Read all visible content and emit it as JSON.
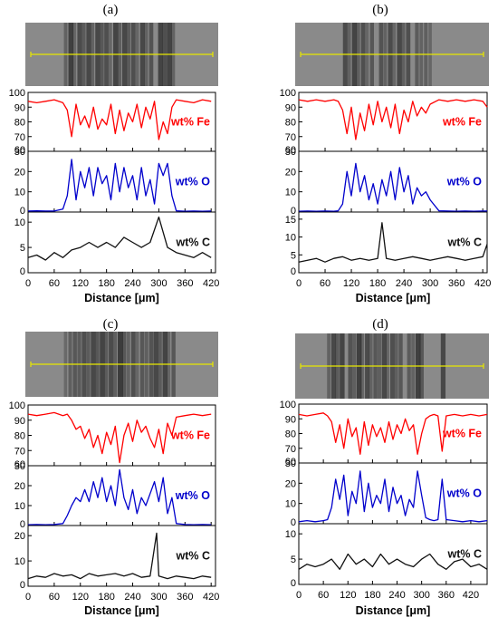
{
  "colors": {
    "fe": "#ff0000",
    "o": "#0000cc",
    "c": "#111111",
    "scan_line": "#e8e800",
    "micrograph": "#8a8a8a"
  },
  "chart_data": [
    {
      "type": "line",
      "panel_label": "(a)",
      "xlabel": "Distance  [μm]",
      "xlim": [
        0,
        430
      ],
      "xticks": [
        "0",
        "60",
        "120",
        "180",
        "240",
        "300",
        "360",
        "420"
      ],
      "series": [
        {
          "name": "wt% Fe",
          "ylim": [
            60,
            100
          ],
          "yticks": [
            "60",
            "70",
            "80",
            "90",
            "100"
          ],
          "x": [
            0,
            20,
            40,
            60,
            80,
            90,
            100,
            110,
            120,
            130,
            140,
            150,
            160,
            170,
            180,
            190,
            200,
            210,
            220,
            230,
            240,
            250,
            260,
            270,
            280,
            290,
            300,
            310,
            320,
            330,
            340,
            360,
            380,
            400,
            420
          ],
          "y": [
            94,
            93,
            94,
            95,
            93,
            88,
            70,
            92,
            78,
            84,
            76,
            90,
            75,
            82,
            78,
            92,
            72,
            88,
            74,
            86,
            80,
            92,
            76,
            90,
            82,
            94,
            68,
            80,
            72,
            90,
            95,
            94,
            93,
            95,
            94
          ]
        },
        {
          "name": "wt% O",
          "ylim": [
            0,
            30
          ],
          "yticks": [
            "0",
            "10",
            "20",
            "30"
          ],
          "x": [
            0,
            20,
            40,
            60,
            80,
            90,
            100,
            110,
            120,
            130,
            140,
            150,
            160,
            170,
            180,
            190,
            200,
            210,
            220,
            230,
            240,
            250,
            260,
            270,
            280,
            290,
            300,
            310,
            320,
            330,
            340,
            360,
            380,
            400,
            420
          ],
          "y": [
            0.5,
            0.6,
            0.5,
            0.5,
            1.5,
            8,
            26,
            6,
            20,
            12,
            22,
            8,
            22,
            14,
            18,
            6,
            24,
            10,
            22,
            12,
            18,
            6,
            22,
            8,
            16,
            4,
            24,
            18,
            24,
            8,
            0.6,
            0.4,
            0.5,
            0.4,
            0.5
          ]
        },
        {
          "name": "wt% C",
          "ylim": [
            0,
            12
          ],
          "yticks": [
            "0",
            "5",
            "10"
          ],
          "x": [
            0,
            20,
            40,
            60,
            80,
            100,
            120,
            140,
            160,
            180,
            200,
            220,
            240,
            260,
            280,
            300,
            320,
            340,
            360,
            380,
            400,
            420
          ],
          "y": [
            3,
            3.5,
            2.5,
            4,
            3,
            4.5,
            5,
            6,
            5,
            6,
            5,
            7,
            6,
            5,
            6,
            11,
            5,
            4,
            3.5,
            3,
            4,
            3
          ]
        }
      ]
    },
    {
      "type": "line",
      "panel_label": "(b)",
      "xlabel": "Distance  [μm]",
      "xlim": [
        0,
        430
      ],
      "xticks": [
        "0",
        "60",
        "120",
        "180",
        "240",
        "300",
        "360",
        "420"
      ],
      "series": [
        {
          "name": "wt% Fe",
          "ylim": [
            60,
            100
          ],
          "yticks": [
            "60",
            "70",
            "80",
            "90",
            "100"
          ],
          "x": [
            0,
            20,
            40,
            60,
            80,
            90,
            100,
            110,
            120,
            130,
            140,
            150,
            160,
            170,
            180,
            190,
            200,
            210,
            220,
            230,
            240,
            250,
            260,
            270,
            280,
            290,
            300,
            320,
            340,
            360,
            380,
            400,
            420,
            430
          ],
          "y": [
            95,
            94,
            95,
            94,
            95,
            94,
            88,
            72,
            90,
            68,
            86,
            74,
            92,
            78,
            94,
            80,
            90,
            76,
            92,
            72,
            88,
            80,
            94,
            84,
            90,
            86,
            92,
            95,
            94,
            95,
            94,
            95,
            94,
            90
          ]
        },
        {
          "name": "wt% O",
          "ylim": [
            0,
            30
          ],
          "yticks": [
            "0",
            "10",
            "20",
            "30"
          ],
          "x": [
            0,
            20,
            40,
            60,
            80,
            90,
            100,
            110,
            120,
            130,
            140,
            150,
            160,
            170,
            180,
            190,
            200,
            210,
            220,
            230,
            240,
            250,
            260,
            270,
            280,
            290,
            300,
            320,
            340,
            360,
            380,
            400,
            420,
            430
          ],
          "y": [
            0.4,
            0.5,
            0.4,
            0.5,
            0.4,
            0.6,
            4,
            20,
            8,
            24,
            10,
            18,
            6,
            14,
            4,
            16,
            8,
            20,
            6,
            22,
            10,
            18,
            4,
            12,
            8,
            10,
            6,
            0.6,
            0.5,
            0.4,
            0.5,
            0.4,
            0.5,
            0.5
          ]
        },
        {
          "name": "wt% C",
          "ylim": [
            0,
            17
          ],
          "yticks": [
            "0",
            "5",
            "10",
            "15"
          ],
          "x": [
            0,
            20,
            40,
            60,
            80,
            100,
            120,
            140,
            160,
            180,
            190,
            200,
            220,
            240,
            260,
            280,
            300,
            320,
            340,
            360,
            380,
            400,
            420,
            430
          ],
          "y": [
            3,
            3.5,
            4,
            3,
            4,
            4.5,
            3.5,
            4,
            3.5,
            4,
            14,
            4,
            3.5,
            4,
            4.5,
            4,
            3.5,
            4,
            4.5,
            4,
            3.5,
            4,
            4.5,
            8
          ]
        }
      ]
    },
    {
      "type": "line",
      "panel_label": "(c)",
      "xlabel": "Distance  [μm]",
      "xlim": [
        0,
        430
      ],
      "xticks": [
        "0",
        "60",
        "120",
        "180",
        "240",
        "300",
        "360",
        "420"
      ],
      "series": [
        {
          "name": "wt% Fe",
          "ylim": [
            60,
            100
          ],
          "yticks": [
            "60",
            "70",
            "80",
            "90",
            "100"
          ],
          "x": [
            0,
            20,
            40,
            60,
            80,
            90,
            100,
            110,
            120,
            130,
            140,
            150,
            160,
            170,
            180,
            190,
            200,
            210,
            220,
            230,
            240,
            250,
            260,
            270,
            280,
            290,
            300,
            310,
            320,
            330,
            340,
            360,
            380,
            400,
            420
          ],
          "y": [
            94,
            93,
            94,
            95,
            93,
            94,
            90,
            84,
            86,
            78,
            84,
            72,
            80,
            68,
            82,
            74,
            86,
            62,
            80,
            88,
            76,
            90,
            82,
            86,
            78,
            72,
            84,
            68,
            88,
            80,
            92,
            93,
            94,
            93,
            94
          ]
        },
        {
          "name": "wt% O",
          "ylim": [
            0,
            30
          ],
          "yticks": [
            "0",
            "10",
            "20",
            "30"
          ],
          "x": [
            0,
            20,
            40,
            60,
            80,
            90,
            100,
            110,
            120,
            130,
            140,
            150,
            160,
            170,
            180,
            190,
            200,
            210,
            220,
            230,
            240,
            250,
            260,
            270,
            280,
            290,
            300,
            310,
            320,
            330,
            340,
            360,
            380,
            400,
            420
          ],
          "y": [
            0.4,
            0.5,
            0.4,
            0.5,
            1,
            5,
            10,
            14,
            12,
            18,
            12,
            22,
            14,
            24,
            12,
            20,
            10,
            28,
            14,
            8,
            18,
            6,
            14,
            10,
            16,
            22,
            12,
            24,
            6,
            14,
            1,
            0.5,
            0.4,
            0.5,
            0.4
          ]
        },
        {
          "name": "wt% C",
          "ylim": [
            0,
            24
          ],
          "yticks": [
            "0",
            "10",
            "20"
          ],
          "x": [
            0,
            20,
            40,
            60,
            80,
            100,
            120,
            140,
            160,
            180,
            200,
            220,
            240,
            260,
            280,
            295,
            300,
            320,
            340,
            360,
            380,
            400,
            420
          ],
          "y": [
            3,
            4,
            3.5,
            5,
            4,
            4.5,
            3,
            5,
            4,
            4.5,
            5,
            4,
            5,
            3.5,
            4,
            21,
            4,
            3,
            4,
            3.5,
            3,
            4,
            3.5
          ]
        }
      ]
    },
    {
      "type": "line",
      "panel_label": "(d)",
      "xlabel": "Distance  [μm]",
      "xlim": [
        0,
        460
      ],
      "xticks": [
        "0",
        "60",
        "120",
        "180",
        "240",
        "300",
        "360",
        "420"
      ],
      "series": [
        {
          "name": "wt% Fe",
          "ylim": [
            60,
            100
          ],
          "yticks": [
            "60",
            "70",
            "80",
            "90",
            "100"
          ],
          "x": [
            0,
            20,
            40,
            60,
            70,
            80,
            90,
            100,
            110,
            120,
            130,
            140,
            150,
            160,
            170,
            180,
            190,
            200,
            210,
            220,
            230,
            240,
            250,
            260,
            270,
            280,
            290,
            300,
            310,
            320,
            330,
            340,
            350,
            360,
            380,
            400,
            420,
            440,
            460
          ],
          "y": [
            93,
            92,
            93,
            94,
            92,
            88,
            74,
            86,
            70,
            90,
            78,
            84,
            66,
            88,
            72,
            86,
            78,
            84,
            74,
            88,
            76,
            86,
            80,
            90,
            82,
            86,
            66,
            80,
            90,
            92,
            93,
            92,
            68,
            92,
            93,
            92,
            93,
            92,
            93
          ]
        },
        {
          "name": "wt% O",
          "ylim": [
            0,
            30
          ],
          "yticks": [
            "0",
            "10",
            "20",
            "30"
          ],
          "x": [
            0,
            20,
            40,
            60,
            70,
            80,
            90,
            100,
            110,
            120,
            130,
            140,
            150,
            160,
            170,
            180,
            190,
            200,
            210,
            220,
            230,
            240,
            250,
            260,
            270,
            280,
            290,
            300,
            310,
            320,
            330,
            340,
            350,
            360,
            380,
            400,
            420,
            440,
            460
          ],
          "y": [
            1,
            1.5,
            1,
            1.5,
            2,
            8,
            22,
            12,
            24,
            4,
            16,
            10,
            26,
            6,
            20,
            8,
            14,
            10,
            22,
            6,
            18,
            10,
            14,
            4,
            12,
            8,
            26,
            14,
            3,
            2,
            1.5,
            2,
            22,
            2,
            1.5,
            1,
            1.5,
            1,
            1.5
          ]
        },
        {
          "name": "wt% C",
          "ylim": [
            0,
            12
          ],
          "yticks": [
            "0",
            "5",
            "10"
          ],
          "x": [
            0,
            20,
            40,
            60,
            80,
            100,
            120,
            140,
            160,
            180,
            200,
            220,
            240,
            260,
            280,
            300,
            320,
            340,
            360,
            380,
            400,
            420,
            440,
            460
          ],
          "y": [
            3,
            4,
            3.5,
            4,
            5,
            3,
            6,
            4,
            5,
            3.5,
            6,
            4,
            5,
            4,
            3.5,
            5,
            6,
            4,
            3,
            4.5,
            5,
            3.5,
            4,
            3
          ]
        }
      ]
    }
  ]
}
